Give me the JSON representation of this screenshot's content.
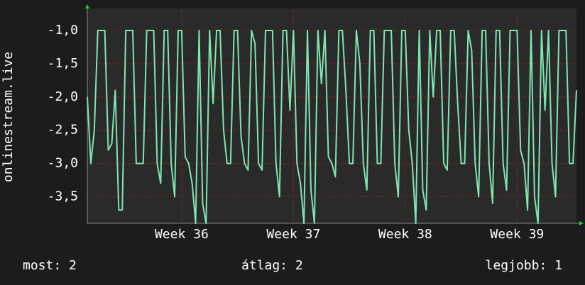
{
  "chart_data": {
    "type": "line",
    "y_label": "onlinestream.live",
    "categories": [
      null,
      null,
      null,
      null,
      null,
      null,
      null,
      null,
      null,
      null,
      null,
      null,
      null,
      null,
      null,
      null,
      null,
      null,
      null,
      null,
      null,
      null,
      null,
      null,
      null,
      null,
      null,
      "Week 36",
      null,
      null,
      null,
      null,
      null,
      null,
      null,
      null,
      null,
      null,
      null,
      null,
      null,
      null,
      null,
      null,
      null,
      null,
      null,
      null,
      null,
      null,
      null,
      null,
      null,
      null,
      null,
      null,
      null,
      null,
      null,
      "Week 37",
      null,
      null,
      null,
      null,
      null,
      null,
      null,
      null,
      null,
      null,
      null,
      null,
      null,
      null,
      null,
      null,
      null,
      null,
      null,
      null,
      null,
      null,
      null,
      null,
      null,
      null,
      null,
      null,
      null,
      null,
      null,
      "Week 38",
      null,
      null,
      null,
      null,
      null,
      null,
      null,
      null,
      null,
      null,
      null,
      null,
      null,
      null,
      null,
      null,
      null,
      null,
      null,
      null,
      null,
      null,
      null,
      null,
      null,
      null,
      null,
      null,
      null,
      null,
      null,
      "Week 39",
      null,
      null,
      null,
      null,
      null,
      null,
      null,
      null,
      null,
      null,
      null,
      null,
      null,
      null,
      null,
      null,
      null
    ],
    "values": [
      -2.0,
      -3.0,
      -2.5,
      -1.0,
      -1.0,
      -1.0,
      -2.8,
      -2.7,
      -1.9,
      -3.7,
      -3.7,
      -1.0,
      -1.0,
      -1.0,
      -3.0,
      -3.0,
      -3.0,
      -1.0,
      -1.0,
      -1.0,
      -3.0,
      -3.3,
      -1.0,
      -1.0,
      -3.0,
      -3.5,
      -1.0,
      -1.0,
      -2.9,
      -3.0,
      -3.3,
      -3.9,
      -1.0,
      -3.6,
      -3.9,
      -1.0,
      -2.1,
      -1.0,
      -1.0,
      -2.5,
      -3.0,
      -3.0,
      -1.0,
      -1.0,
      -2.6,
      -3.0,
      -3.1,
      -1.0,
      -1.2,
      -3.0,
      -3.1,
      -1.0,
      -1.0,
      -1.0,
      -3.0,
      -3.5,
      -1.0,
      -1.0,
      -2.2,
      -1.0,
      -3.0,
      -3.3,
      -3.9,
      -1.0,
      -3.4,
      -3.9,
      -1.0,
      -1.8,
      -1.0,
      -2.9,
      -3.0,
      -3.2,
      -1.0,
      -1.0,
      -1.9,
      -3.0,
      -3.0,
      -1.0,
      -1.5,
      -3.0,
      -3.4,
      -1.0,
      -1.0,
      -3.0,
      -3.0,
      -1.0,
      -1.0,
      -1.0,
      -3.0,
      -3.5,
      -1.0,
      -1.0,
      -2.5,
      -3.0,
      -3.9,
      -1.0,
      -3.4,
      -3.7,
      -1.0,
      -2.0,
      -1.0,
      -1.0,
      -3.0,
      -3.1,
      -1.0,
      -1.0,
      -2.1,
      -3.0,
      -3.0,
      -1.0,
      -1.3,
      -3.0,
      -3.5,
      -1.0,
      -1.0,
      -3.0,
      -3.6,
      -1.0,
      -1.0,
      -3.0,
      -3.4,
      -1.0,
      -1.0,
      -1.0,
      -2.8,
      -3.0,
      -3.7,
      -1.0,
      -3.5,
      -3.9,
      -1.0,
      -2.2,
      -1.0,
      -3.0,
      -3.5,
      -1.0,
      -1.0,
      -1.0,
      -3.0,
      -3.0,
      -1.9
    ],
    "color": "#7fe6b0",
    "ylim": [
      -3.9,
      -0.67
    ],
    "yticks": [
      {
        "value": -3.5,
        "label": "-3,5"
      },
      {
        "value": -3.0,
        "label": "-3,0"
      },
      {
        "value": -2.5,
        "label": "-2,5"
      },
      {
        "value": -2.0,
        "label": "-2,0"
      },
      {
        "value": -1.5,
        "label": "-1,5"
      },
      {
        "value": -1.0,
        "label": "-1,0"
      }
    ],
    "grid": true,
    "legend": {
      "current": "most: 2",
      "average": "átlag: 2",
      "best": "legjobb: 1"
    }
  }
}
